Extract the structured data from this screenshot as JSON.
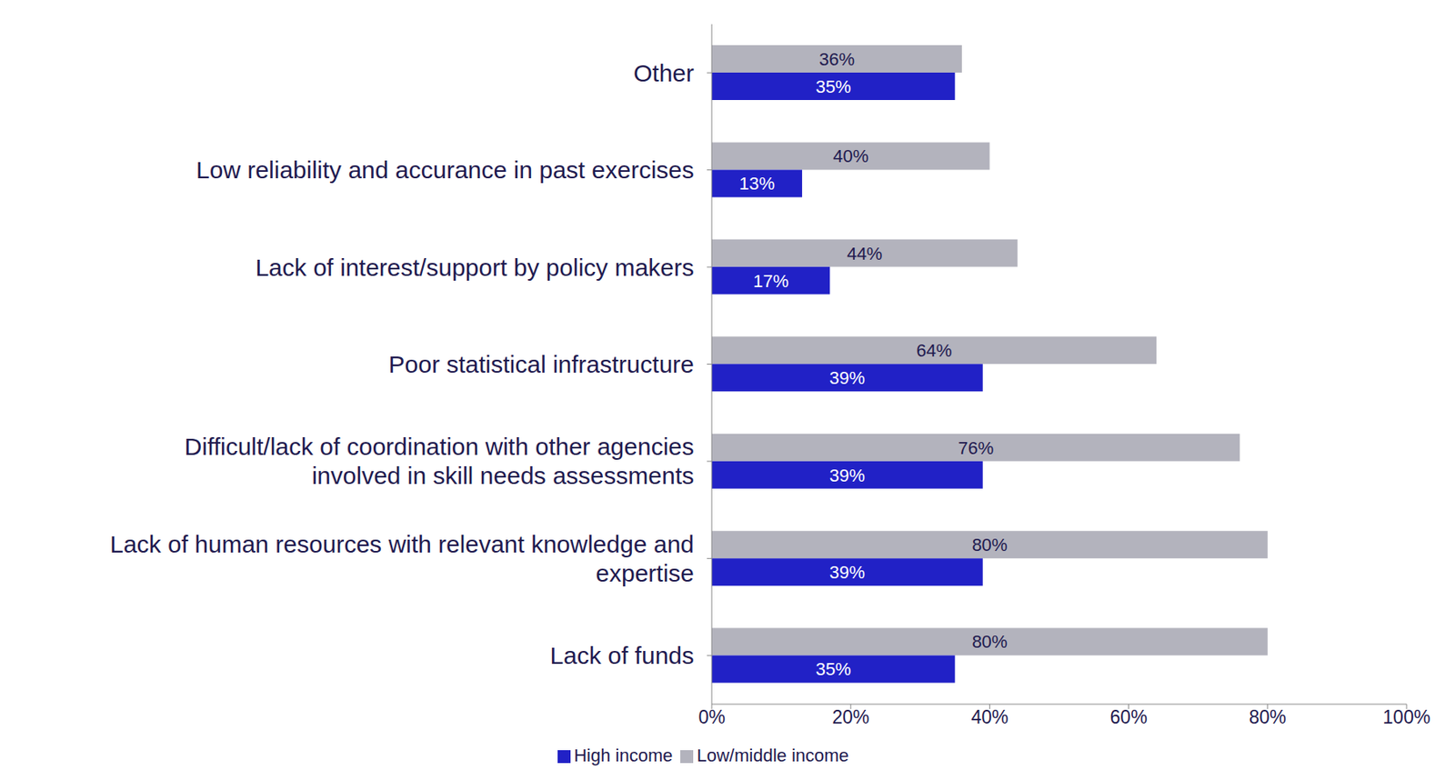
{
  "chart_data": {
    "type": "bar",
    "orientation": "horizontal",
    "categories": [
      "Other",
      "Low reliability and accurance in past exercises",
      "Lack of interest/support by policy makers",
      "Poor statistical infrastructure",
      "Difficult/lack of coordination with other agencies involved in skill needs assessments",
      "Lack of human resources with relevant knowledge and expertise",
      "Lack of funds"
    ],
    "series": [
      {
        "name": "Low/middle income",
        "color": "#b3b3bd",
        "values": [
          36,
          40,
          44,
          64,
          76,
          80,
          80
        ],
        "value_labels": [
          "36%",
          "40%",
          "44%",
          "64%",
          "76%",
          "80%",
          "80%"
        ]
      },
      {
        "name": "High income",
        "color": "#2121c6",
        "values": [
          35,
          13,
          17,
          39,
          39,
          39,
          35
        ],
        "value_labels": [
          "35%",
          "13%",
          "17%",
          "39%",
          "39%",
          "39%",
          "35%"
        ]
      }
    ],
    "xlim": [
      0,
      100
    ],
    "xticks": [
      {
        "value": 0,
        "label": "0%"
      },
      {
        "value": 20,
        "label": "20%"
      },
      {
        "value": 40,
        "label": "40%"
      },
      {
        "value": 60,
        "label": "60%"
      },
      {
        "value": 80,
        "label": "80%"
      },
      {
        "value": 100,
        "label": "100%"
      }
    ],
    "data_labels": true,
    "legend": "bottom",
    "grid": false
  }
}
